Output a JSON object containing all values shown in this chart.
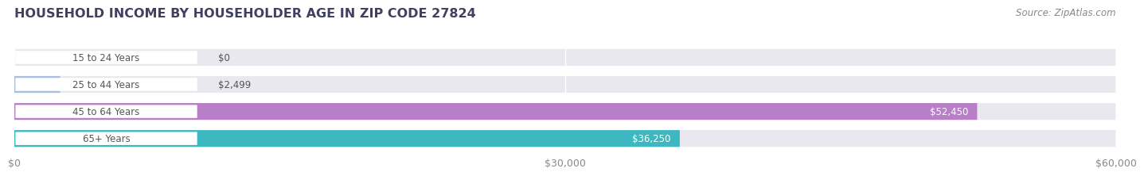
{
  "title": "HOUSEHOLD INCOME BY HOUSEHOLDER AGE IN ZIP CODE 27824",
  "source": "Source: ZipAtlas.com",
  "categories": [
    "15 to 24 Years",
    "25 to 44 Years",
    "45 to 64 Years",
    "65+ Years"
  ],
  "values": [
    0,
    2499,
    52450,
    36250
  ],
  "bar_colors": [
    "#f0a8a8",
    "#a8c0e0",
    "#b87ec8",
    "#3db8c0"
  ],
  "value_labels": [
    "$0",
    "$2,499",
    "$52,450",
    "$36,250"
  ],
  "xlim": [
    0,
    60000
  ],
  "xticklabels": [
    "$0",
    "$30,000",
    "$60,000"
  ],
  "xtick_vals": [
    0,
    30000,
    60000
  ],
  "bar_height": 0.62,
  "background_color": "#ffffff",
  "bar_bg_color": "#e8e8ee",
  "title_fontsize": 11.5,
  "source_fontsize": 8.5,
  "tick_fontsize": 9,
  "label_fontsize": 8.5,
  "value_fontsize": 8.5,
  "title_color": "#404060",
  "source_color": "#888888",
  "tick_color": "#888888",
  "label_text_color": "#555555"
}
